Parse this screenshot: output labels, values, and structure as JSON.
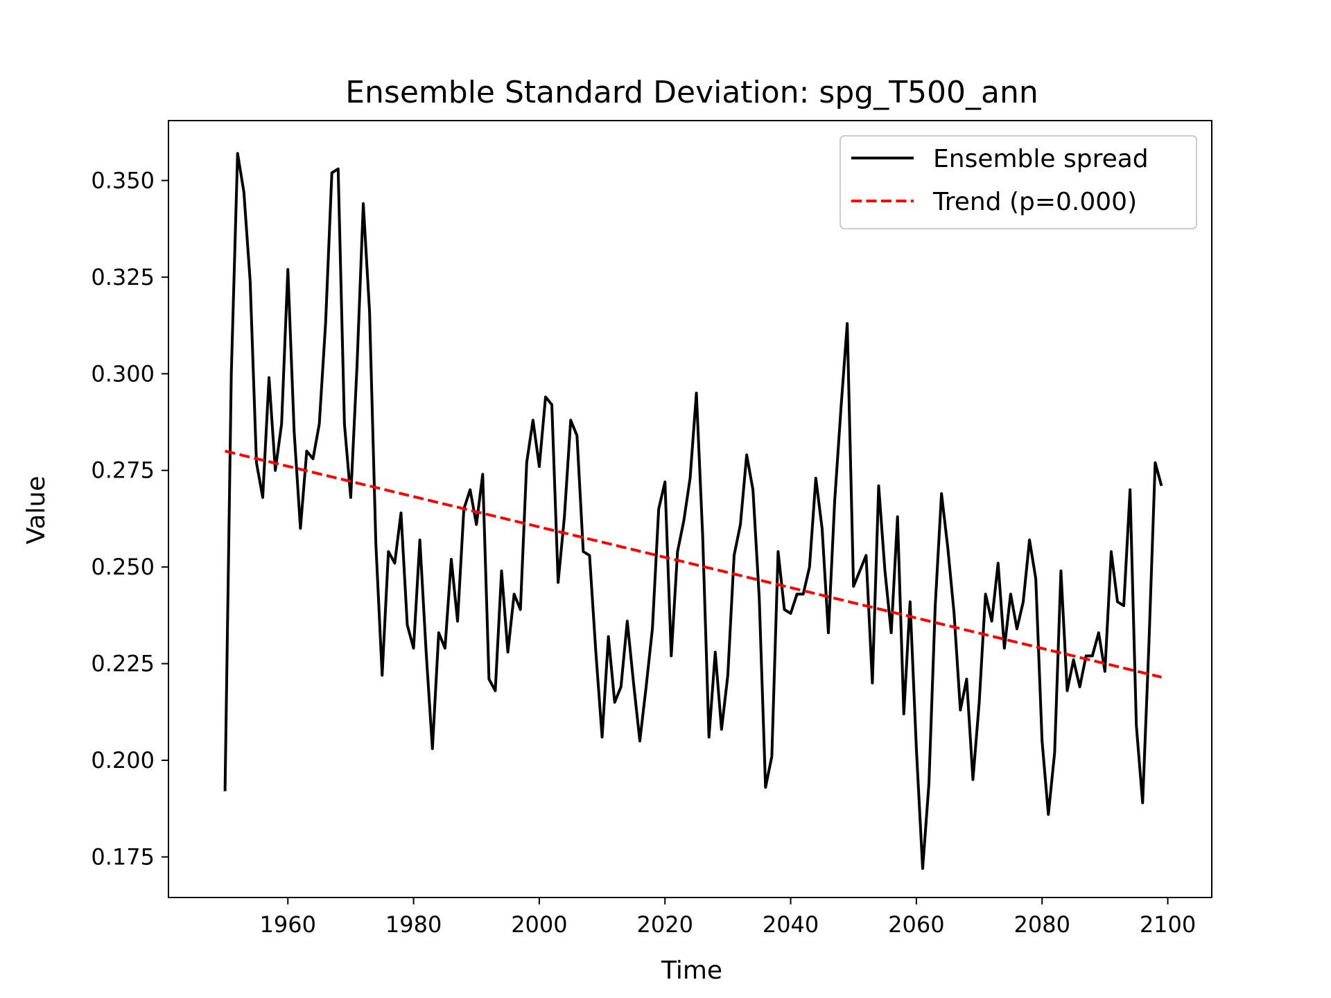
{
  "chart_data": {
    "type": "line",
    "title": "Ensemble Standard Deviation: spg_T500_ann",
    "xlabel": "Time",
    "ylabel": "Value",
    "xlim": [
      1941,
      2107
    ],
    "ylim": [
      0.1645,
      0.3655
    ],
    "xticks": [
      1960,
      1980,
      2000,
      2020,
      2040,
      2060,
      2080,
      2100
    ],
    "xtick_labels": [
      "1960",
      "1980",
      "2000",
      "2020",
      "2040",
      "2060",
      "2080",
      "2100"
    ],
    "yticks": [
      0.175,
      0.2,
      0.225,
      0.25,
      0.275,
      0.3,
      0.325,
      0.35
    ],
    "ytick_labels": [
      "0.175",
      "0.200",
      "0.225",
      "0.250",
      "0.275",
      "0.300",
      "0.325",
      "0.350"
    ],
    "grid": false,
    "legend_position": "top-right",
    "series": [
      {
        "name": "Ensemble spread",
        "color": "#000000",
        "style": "solid",
        "x": [
          1950,
          1951,
          1952,
          1953,
          1954,
          1955,
          1956,
          1957,
          1958,
          1959,
          1960,
          1961,
          1962,
          1963,
          1964,
          1965,
          1966,
          1967,
          1968,
          1969,
          1970,
          1971,
          1972,
          1973,
          1974,
          1975,
          1976,
          1977,
          1978,
          1979,
          1980,
          1981,
          1982,
          1983,
          1984,
          1985,
          1986,
          1987,
          1988,
          1989,
          1990,
          1991,
          1992,
          1993,
          1994,
          1995,
          1996,
          1997,
          1998,
          1999,
          2000,
          2001,
          2002,
          2003,
          2004,
          2005,
          2006,
          2007,
          2008,
          2009,
          2010,
          2011,
          2012,
          2013,
          2014,
          2015,
          2016,
          2017,
          2018,
          2019,
          2020,
          2021,
          2022,
          2023,
          2024,
          2025,
          2026,
          2027,
          2028,
          2029,
          2030,
          2031,
          2032,
          2033,
          2034,
          2035,
          2036,
          2037,
          2038,
          2039,
          2040,
          2041,
          2042,
          2043,
          2044,
          2045,
          2046,
          2047,
          2048,
          2049,
          2050,
          2051,
          2052,
          2053,
          2054,
          2055,
          2056,
          2057,
          2058,
          2059,
          2060,
          2061,
          2062,
          2063,
          2064,
          2065,
          2066,
          2067,
          2068,
          2069,
          2070,
          2071,
          2072,
          2073,
          2074,
          2075,
          2076,
          2077,
          2078,
          2079,
          2080,
          2081,
          2082,
          2083,
          2084,
          2085,
          2086,
          2087,
          2088,
          2089,
          2090,
          2091,
          2092,
          2093,
          2094,
          2095,
          2096,
          2097,
          2098,
          2099
        ],
        "values": [
          0.192,
          0.3,
          0.357,
          0.347,
          0.324,
          0.277,
          0.268,
          0.299,
          0.275,
          0.287,
          0.327,
          0.285,
          0.26,
          0.28,
          0.278,
          0.287,
          0.313,
          0.352,
          0.353,
          0.287,
          0.268,
          0.302,
          0.344,
          0.316,
          0.256,
          0.222,
          0.254,
          0.251,
          0.264,
          0.235,
          0.229,
          0.257,
          0.228,
          0.203,
          0.233,
          0.229,
          0.252,
          0.236,
          0.265,
          0.27,
          0.261,
          0.274,
          0.221,
          0.218,
          0.249,
          0.228,
          0.243,
          0.239,
          0.277,
          0.288,
          0.276,
          0.294,
          0.292,
          0.246,
          0.263,
          0.288,
          0.284,
          0.254,
          0.253,
          0.228,
          0.206,
          0.232,
          0.215,
          0.219,
          0.236,
          0.22,
          0.205,
          0.219,
          0.234,
          0.265,
          0.272,
          0.227,
          0.254,
          0.262,
          0.273,
          0.295,
          0.258,
          0.206,
          0.228,
          0.208,
          0.222,
          0.253,
          0.261,
          0.279,
          0.27,
          0.242,
          0.193,
          0.201,
          0.254,
          0.239,
          0.238,
          0.243,
          0.243,
          0.25,
          0.273,
          0.26,
          0.233,
          0.267,
          0.291,
          0.313,
          0.245,
          0.249,
          0.253,
          0.22,
          0.271,
          0.249,
          0.233,
          0.263,
          0.212,
          0.241,
          0.203,
          0.172,
          0.194,
          0.24,
          0.269,
          0.255,
          0.238,
          0.213,
          0.221,
          0.195,
          0.215,
          0.243,
          0.236,
          0.251,
          0.229,
          0.243,
          0.234,
          0.241,
          0.257,
          0.247,
          0.205,
          0.186,
          0.202,
          0.249,
          0.218,
          0.226,
          0.219,
          0.227,
          0.227,
          0.233,
          0.223,
          0.254,
          0.241,
          0.24,
          0.27,
          0.209,
          0.189,
          0.23,
          0.277,
          0.271
        ]
      },
      {
        "name": "Trend (p=0.000)",
        "color": "#ff0000",
        "style": "dashed",
        "x": [
          1950,
          2099
        ],
        "values": [
          0.28,
          0.2215
        ]
      }
    ]
  }
}
